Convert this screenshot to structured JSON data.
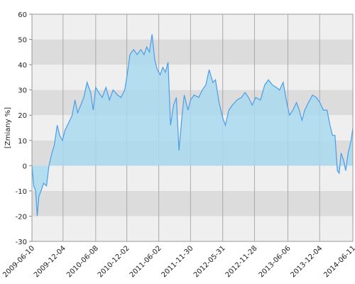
{
  "chart_data": {
    "type": "area",
    "ylabel": "[Zmiany %]",
    "ylim": [
      -30,
      60
    ],
    "yticks": [
      -30,
      -20,
      -10,
      0,
      10,
      20,
      30,
      40,
      50,
      60
    ],
    "xlim": [
      "2009-06-10",
      "2014-06-11"
    ],
    "xticks": [
      "2009-06-10",
      "2009-12-04",
      "2010-06-08",
      "2010-12-02",
      "2011-06-02",
      "2011-11-30",
      "2012-05-31",
      "2012-11-28",
      "2013-06-06",
      "2013-12-04",
      "2014-06-11"
    ],
    "grid": true,
    "color": "#4a9de8",
    "fill": "#a9d9ef",
    "x": [
      "2009-06-10",
      "2009-06-20",
      "2009-07-01",
      "2009-07-10",
      "2009-07-20",
      "2009-08-01",
      "2009-08-15",
      "2009-09-01",
      "2009-09-15",
      "2009-10-01",
      "2009-10-15",
      "2009-11-01",
      "2009-11-15",
      "2009-12-01",
      "2009-12-15",
      "2010-01-05",
      "2010-01-25",
      "2010-02-10",
      "2010-02-25",
      "2010-03-15",
      "2010-04-01",
      "2010-04-20",
      "2010-05-10",
      "2010-05-25",
      "2010-06-08",
      "2010-06-25",
      "2010-07-15",
      "2010-08-05",
      "2010-08-25",
      "2010-09-15",
      "2010-10-10",
      "2010-10-30",
      "2010-11-20",
      "2010-12-02",
      "2010-12-20",
      "2011-01-10",
      "2011-01-30",
      "2011-02-20",
      "2011-03-10",
      "2011-03-25",
      "2011-04-10",
      "2011-04-25",
      "2011-05-10",
      "2011-05-25",
      "2011-06-10",
      "2011-06-25",
      "2011-07-10",
      "2011-07-25",
      "2011-08-08",
      "2011-08-25",
      "2011-09-10",
      "2011-09-25",
      "2011-10-10",
      "2011-10-25",
      "2011-11-15",
      "2011-11-30",
      "2011-12-20",
      "2012-01-15",
      "2012-02-05",
      "2012-02-25",
      "2012-03-15",
      "2012-04-05",
      "2012-04-20",
      "2012-05-10",
      "2012-05-31",
      "2012-06-15",
      "2012-07-05",
      "2012-07-25",
      "2012-08-20",
      "2012-09-15",
      "2012-10-05",
      "2012-10-25",
      "2012-11-15",
      "2012-12-05",
      "2013-01-01",
      "2013-01-25",
      "2013-02-15",
      "2013-03-10",
      "2013-04-01",
      "2013-04-20",
      "2013-05-10",
      "2013-05-25",
      "2013-06-15",
      "2013-07-05",
      "2013-07-25",
      "2013-08-10",
      "2013-08-25",
      "2013-09-10",
      "2013-10-01",
      "2013-10-25",
      "2013-11-15",
      "2013-12-05",
      "2013-12-25",
      "2014-01-15",
      "2014-02-01",
      "2014-02-15",
      "2014-03-01",
      "2014-03-15",
      "2014-03-25",
      "2014-04-05",
      "2014-04-20",
      "2014-05-01",
      "2014-05-15",
      "2014-06-01",
      "2014-06-11"
    ],
    "values": [
      0,
      -8,
      -10,
      -20,
      -12,
      -10,
      -7,
      -8,
      0,
      5,
      8,
      16,
      12,
      10,
      14,
      17,
      20,
      26,
      21,
      24,
      27,
      33,
      29,
      22,
      31,
      29,
      27,
      31,
      26,
      30,
      28,
      27,
      30,
      35,
      44,
      46,
      44,
      46,
      44,
      47,
      45,
      52,
      42,
      38,
      36,
      39,
      37,
      41,
      16,
      24,
      27,
      6,
      18,
      28,
      22,
      26,
      28,
      27,
      30,
      32,
      38,
      33,
      34,
      25,
      19,
      16,
      22,
      24,
      26,
      27,
      29,
      27,
      24,
      27,
      26,
      32,
      34,
      32,
      31,
      30,
      33,
      27,
      20,
      22,
      25,
      22,
      18,
      22,
      25,
      28,
      27,
      25,
      22,
      22,
      16,
      12,
      12,
      -2,
      -3,
      5,
      2,
      -2,
      5,
      10,
      15
    ]
  }
}
